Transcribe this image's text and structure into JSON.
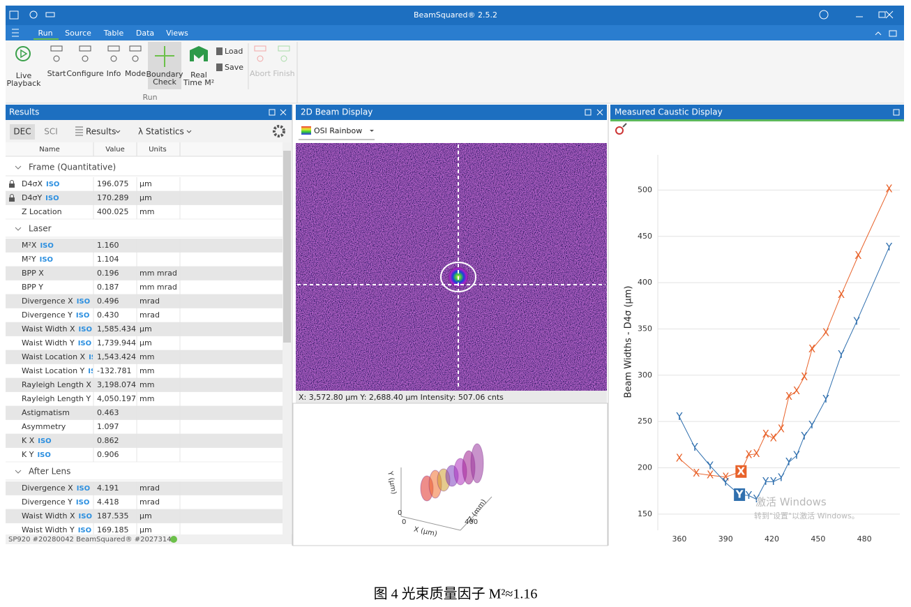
{
  "window": {
    "title": "BeamSquared® 2.5.2"
  },
  "menu": [
    "Run",
    "Source",
    "Table",
    "Data",
    "Views"
  ],
  "ribbon": {
    "buttons": [
      {
        "label": [
          "Live",
          "Playback"
        ]
      },
      {
        "label": [
          "Start"
        ]
      },
      {
        "label": [
          "Configure"
        ]
      },
      {
        "label": [
          "Info"
        ]
      },
      {
        "label": [
          "Mode"
        ]
      },
      {
        "label": [
          "Boundary",
          "Check"
        ]
      },
      {
        "label": [
          "Real",
          "Time M²"
        ]
      },
      {
        "label": [
          "Load"
        ]
      },
      {
        "label": [
          "Save"
        ]
      },
      {
        "label": [
          "Abort"
        ],
        "disabled": true
      },
      {
        "label": [
          "Finish"
        ],
        "disabled": true
      }
    ],
    "group": "Run"
  },
  "results": {
    "title": "Results",
    "toolbar": [
      "DEC",
      "SCI",
      "Results",
      "λ Statistics"
    ],
    "columns": [
      "Name",
      "Value",
      "Units"
    ],
    "groups": [
      {
        "name": "Frame (Quantitative)",
        "rows": [
          {
            "name": "D4σX",
            "tag": "ISO",
            "value": "196.075",
            "units": "μm",
            "locked": true
          },
          {
            "name": "D4σY",
            "tag": "ISO",
            "value": "170.289",
            "units": "μm",
            "locked": true
          },
          {
            "name": "Z Location",
            "value": "400.025",
            "units": "mm"
          }
        ]
      },
      {
        "name": "Laser",
        "rows": [
          {
            "name": "M²X",
            "tag": "ISO",
            "value": "1.160"
          },
          {
            "name": "M²Y",
            "tag": "ISO",
            "value": "1.104"
          },
          {
            "name": "BPP X",
            "value": "0.196",
            "units": "mm mrad"
          },
          {
            "name": "BPP Y",
            "value": "0.187",
            "units": "mm mrad"
          },
          {
            "name": "Divergence X",
            "tag": "ISO",
            "value": "0.496",
            "units": "mrad"
          },
          {
            "name": "Divergence Y",
            "tag": "ISO",
            "value": "0.430",
            "units": "mrad"
          },
          {
            "name": "Waist Width X",
            "tag": "ISO",
            "value": "1,585.434",
            "units": "μm"
          },
          {
            "name": "Waist Width Y",
            "tag": "ISO",
            "value": "1,739.944",
            "units": "μm"
          },
          {
            "name": "Waist Location X",
            "tag": "ISO",
            "value": "1,543.424",
            "units": "mm"
          },
          {
            "name": "Waist Location Y",
            "tag": "ISO",
            "value": "-132.781",
            "units": "mm"
          },
          {
            "name": "Rayleigh Length X",
            "tag": "ISO",
            "value": "3,198.074",
            "units": "mm"
          },
          {
            "name": "Rayleigh Length Y",
            "tag": "ISO",
            "value": "4,050.197",
            "units": "mm"
          },
          {
            "name": "Astigmatism",
            "value": "0.463"
          },
          {
            "name": "Asymmetry",
            "value": "1.097"
          },
          {
            "name": "K X",
            "tag": "ISO",
            "value": "0.862"
          },
          {
            "name": "K Y",
            "tag": "ISO",
            "value": "0.906"
          }
        ]
      },
      {
        "name": "After Lens",
        "rows": [
          {
            "name": "Divergence X",
            "tag": "ISO",
            "value": "4.191",
            "units": "mrad"
          },
          {
            "name": "Divergence Y",
            "tag": "ISO",
            "value": "4.418",
            "units": "mrad"
          },
          {
            "name": "Waist Width X",
            "tag": "ISO",
            "value": "187.535",
            "units": "μm"
          },
          {
            "name": "Waist Width Y",
            "tag": "ISO",
            "value": "169.185",
            "units": "μm"
          }
        ]
      }
    ],
    "status": "SP920 #20280042 BeamSquared® #2027314"
  },
  "beam_display": {
    "title": "2D Beam Display",
    "palette": "OSI Rainbow",
    "readout": "X: 3,572.80 µm  Y: 2,688.40 µm  Intensity: 507.06 cnts",
    "view_3d": {
      "y_label": "Y (µm)",
      "x_label": "X (µm)",
      "z_label": "Z (mm)",
      "y_tick": "0",
      "x_tick": "0",
      "z_tick": "400"
    }
  },
  "caustic_chart": {
    "type": "scatter",
    "title": "Measured Caustic Display",
    "y_label": "Beam Widths - D4σ (μm)",
    "xlim": [
      346,
      503
    ],
    "xticks": [
      360,
      390,
      420,
      450,
      480
    ],
    "ylim": [
      125,
      538
    ],
    "yticks": [
      150,
      200,
      250,
      300,
      350,
      400,
      450,
      500
    ],
    "grid": true,
    "series": [
      {
        "name": "X",
        "color": "#e8622a",
        "highlight": 4,
        "x": [
          360,
          371,
          380,
          390,
          400,
          405,
          410,
          416,
          421,
          426,
          431,
          436,
          441,
          446,
          455,
          465,
          476,
          496
        ],
        "values": [
          210,
          194,
          192,
          190,
          196,
          214,
          215,
          236,
          232,
          242,
          277,
          283,
          298,
          328,
          346,
          387,
          429,
          501
        ]
      },
      {
        "name": "Y",
        "color": "#2f6fae",
        "highlight": 4,
        "x": [
          360,
          370,
          380,
          390,
          399,
          405,
          410,
          416,
          421,
          426,
          431,
          436,
          441,
          446,
          455,
          465,
          475,
          496
        ],
        "values": [
          255,
          222,
          202,
          184,
          171,
          170,
          166,
          185,
          185,
          189,
          206,
          213,
          234,
          246,
          274,
          322,
          358,
          438
        ]
      }
    ]
  },
  "watermark": {
    "title": "激活 Windows",
    "text": "转到\"设置\"以激活 Windows。"
  },
  "caption": "图 4  光束质量因子 M²≈1.16"
}
